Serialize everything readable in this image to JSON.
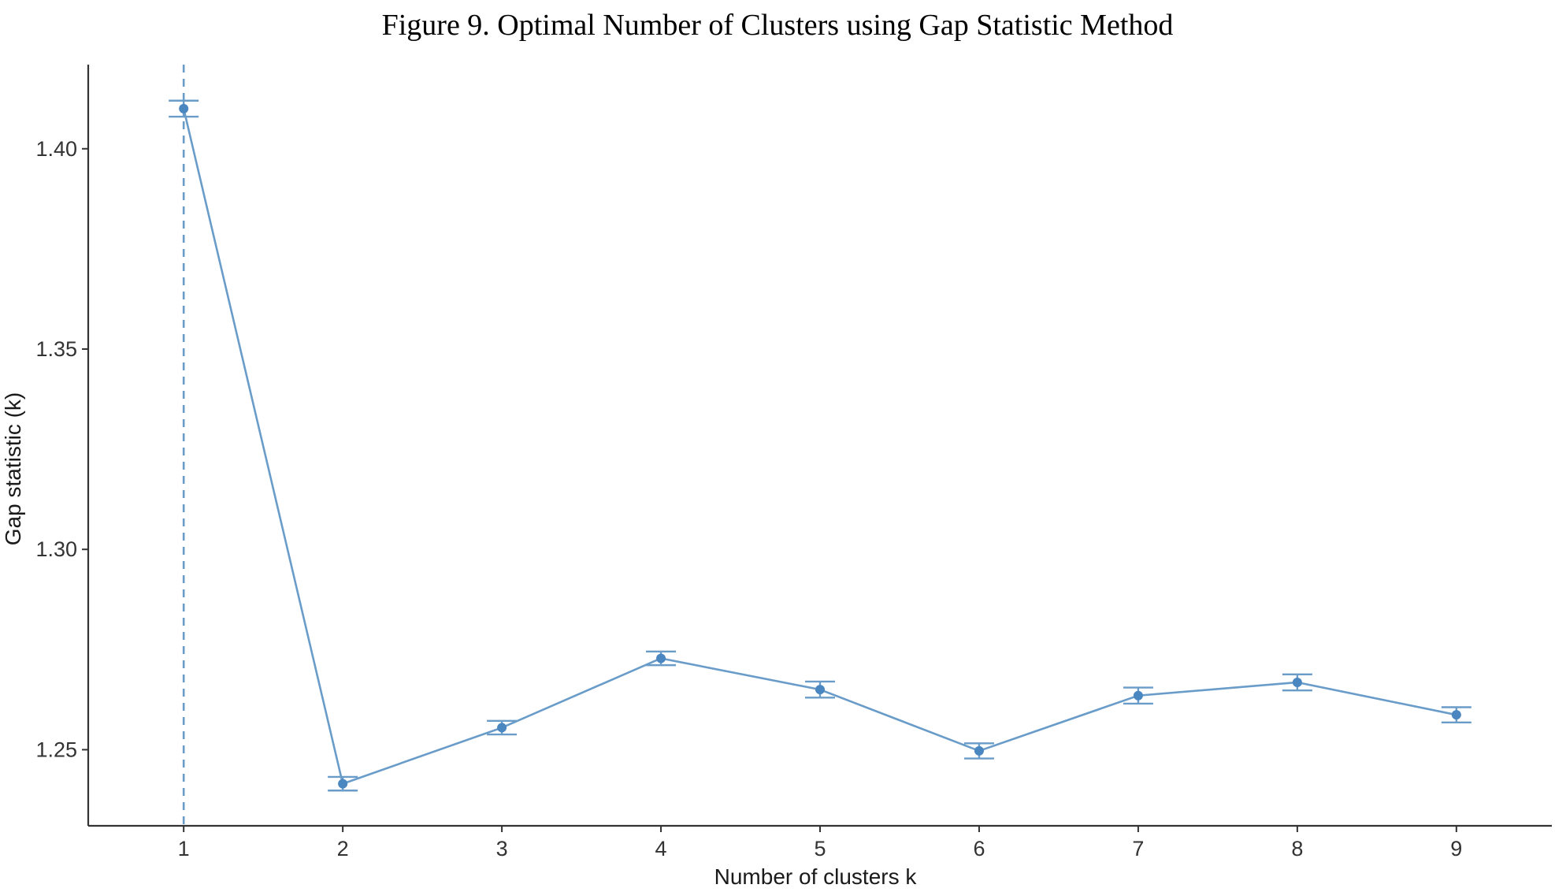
{
  "figure_title": "Figure 9. Optimal Number of Clusters using Gap Statistic Method",
  "chart_data": {
    "type": "line",
    "title": "Figure 9. Optimal Number of Clusters using Gap Statistic Method",
    "xlabel": "Number of clusters k",
    "ylabel": "Gap statistic (k)",
    "x": [
      1,
      2,
      3,
      4,
      5,
      6,
      7,
      8,
      9
    ],
    "xlim": [
      0.4,
      9.6
    ],
    "ylim": [
      1.231,
      1.421
    ],
    "yticks": [
      1.25,
      1.3,
      1.35,
      1.4
    ],
    "ytick_labels": [
      "1.25",
      "1.30",
      "1.35",
      "1.40"
    ],
    "xtick_labels": [
      "1",
      "2",
      "3",
      "4",
      "5",
      "6",
      "7",
      "8",
      "9"
    ],
    "series": [
      {
        "values": [
          1.41,
          1.2415,
          1.2555,
          1.2728,
          1.265,
          1.2497,
          1.2635,
          1.2668,
          1.2587
        ],
        "err_low": [
          1.408,
          1.2398,
          1.2538,
          1.2711,
          1.263,
          1.2478,
          1.2615,
          1.2648,
          1.2568
        ],
        "err_high": [
          1.412,
          1.2432,
          1.2572,
          1.2745,
          1.267,
          1.2516,
          1.2655,
          1.2688,
          1.2606
        ],
        "color": "#6a9cc9"
      }
    ],
    "optimal_k": 1,
    "grid": false,
    "legend": "none"
  }
}
